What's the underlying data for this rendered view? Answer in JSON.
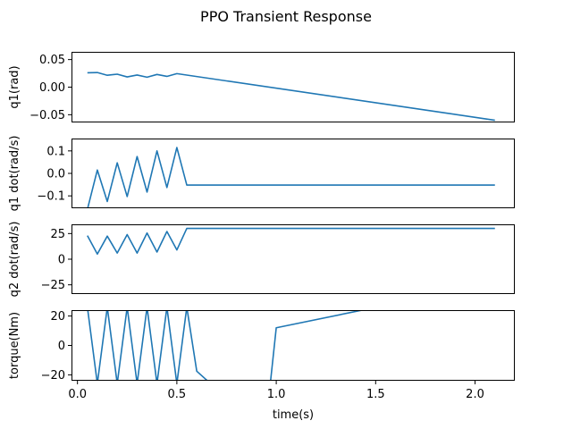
{
  "chart_data": {
    "type": "line",
    "title": "PPO Transient Response",
    "xlabel": "time(s)",
    "xlim": [
      -0.03,
      2.2
    ],
    "xticks": [
      0.0,
      0.5,
      1.0,
      1.5,
      2.0
    ],
    "xtick_labels": [
      "0.0",
      "0.5",
      "1.0",
      "1.5",
      "2.0"
    ],
    "line_color": "#1f77b4",
    "panels": [
      {
        "ylabel": "q1(rad)",
        "ylim": [
          -0.064,
          0.064
        ],
        "yticks": [
          0.05,
          0.0,
          -0.05
        ],
        "ytick_labels": [
          "0.05",
          "0.00",
          "−0.05"
        ],
        "x": [
          0.05,
          0.1,
          0.15,
          0.2,
          0.25,
          0.3,
          0.35,
          0.4,
          0.45,
          0.5,
          2.1
        ],
        "y": [
          0.026,
          0.0265,
          0.0215,
          0.0235,
          0.0185,
          0.022,
          0.018,
          0.023,
          0.0195,
          0.0245,
          -0.06
        ]
      },
      {
        "ylabel": "q1 dot(rad/s)",
        "ylim": [
          -0.155,
          0.155
        ],
        "yticks": [
          0.1,
          0.0,
          -0.1
        ],
        "ytick_labels": [
          "0.1",
          "0.0",
          "−0.1"
        ],
        "x": [
          0.05,
          0.1,
          0.15,
          0.2,
          0.25,
          0.3,
          0.35,
          0.4,
          0.45,
          0.5,
          0.55,
          2.1
        ],
        "y": [
          -0.16,
          0.015,
          -0.125,
          0.047,
          -0.103,
          0.075,
          -0.083,
          0.1,
          -0.063,
          0.115,
          -0.052,
          -0.052
        ]
      },
      {
        "ylabel": "q2 dot(rad/s)",
        "ylim": [
          -34,
          34
        ],
        "yticks": [
          25,
          0,
          -25
        ],
        "ytick_labels": [
          "25",
          "0",
          "−25"
        ],
        "x": [
          0.05,
          0.1,
          0.15,
          0.2,
          0.25,
          0.3,
          0.35,
          0.4,
          0.45,
          0.5,
          0.55,
          2.1
        ],
        "y": [
          23,
          5,
          22.5,
          6,
          24,
          6,
          25.5,
          7,
          27,
          9,
          30,
          30
        ]
      },
      {
        "ylabel": "torque(Nm)",
        "ylim": [
          -24,
          24
        ],
        "yticks": [
          20,
          0,
          -20
        ],
        "ytick_labels": [
          "20",
          "0",
          "−20"
        ],
        "x": [
          0.05,
          0.1,
          0.15,
          0.2,
          0.25,
          0.3,
          0.35,
          0.4,
          0.45,
          0.5,
          0.55,
          0.6,
          0.67,
          0.97,
          1.0,
          1.45
        ],
        "y": [
          26,
          -26,
          26,
          -26,
          26,
          -26,
          26,
          -26,
          26,
          -26,
          26,
          -17.5,
          -26,
          -26,
          12,
          24.5
        ]
      }
    ]
  }
}
